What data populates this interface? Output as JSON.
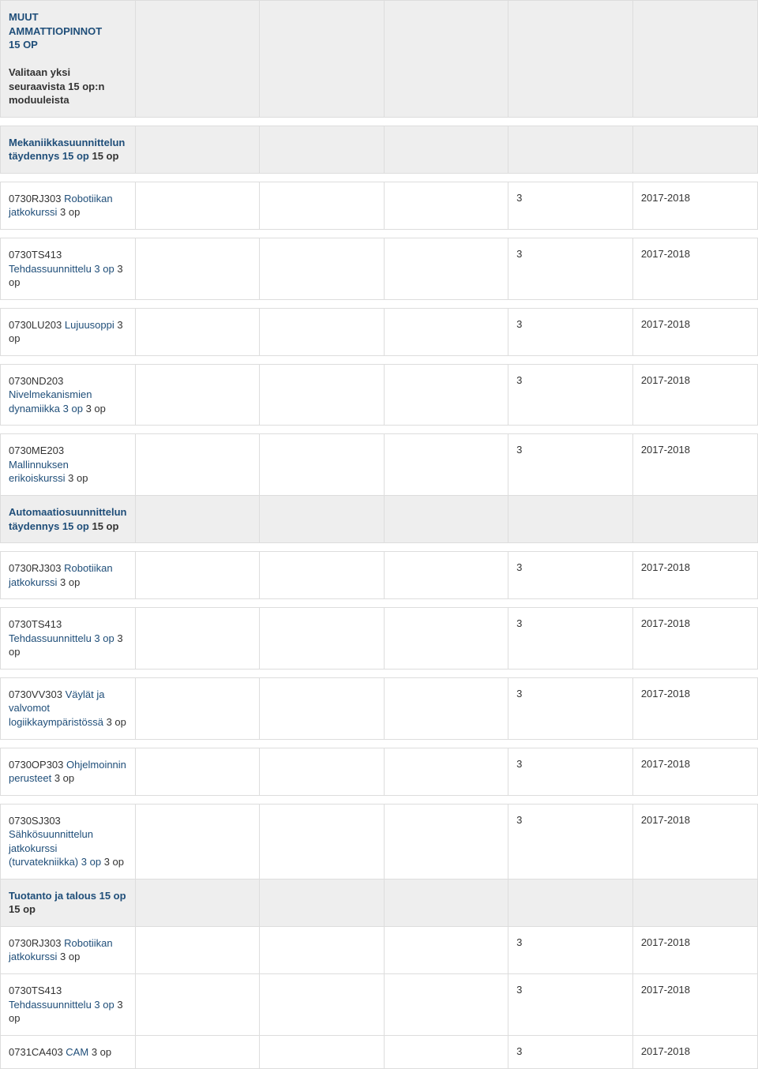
{
  "colors": {
    "header_bg": "#eeeeee",
    "row_bg": "#ffffff",
    "row_alt_bg": "#f9f9f9",
    "border": "#dddddd",
    "link": "#1f4e79",
    "text": "#333333"
  },
  "layout": {
    "columns": 6,
    "col_widths_pct": [
      16.6,
      16.68,
      16.68,
      16.68,
      16.68,
      16.68
    ],
    "font_family": "Arial",
    "font_size_pt": 10
  },
  "credits_col_index": 4,
  "year_col_index": 5,
  "sections": [
    {
      "kind": "header",
      "title": "MUUT AMMATTIOPINNOT",
      "title_suffix": " 15 OP",
      "subtext": "Valitaan yksi seuraavista 15 op:n moduuleista"
    },
    {
      "kind": "header",
      "title": "Mekaniikkasuunnittelun täydennys 15 op",
      "title_after": " 15 op"
    },
    {
      "kind": "course",
      "code": "0730RJ303",
      "name": "Robotiikan jatkokurssi",
      "op": "3 op",
      "credits": "3",
      "year": "2017-2018"
    },
    {
      "kind": "course",
      "code": "0730TS413",
      "name": "Tehdassuunnittelu 3 op",
      "op": "3 op",
      "credits": "3",
      "year": "2017-2018"
    },
    {
      "kind": "course",
      "code": "0730LU203",
      "name": "Lujuusoppi",
      "op": "3 op",
      "credits": "3",
      "year": "2017-2018"
    },
    {
      "kind": "course",
      "code": "0730ND203",
      "name": "Nivelmekanismien dynamiikka 3 op",
      "op": "3 op",
      "credits": "3",
      "year": "2017-2018"
    },
    {
      "kind": "course",
      "code": "0730ME203",
      "name": "Mallinnuksen erikoiskurssi",
      "op": "3 op",
      "credits": "3",
      "year": "2017-2018"
    },
    {
      "kind": "header_attached",
      "title": "Automaatiosuunnittelun täydennys 15 op",
      "title_after": " 15 op"
    },
    {
      "kind": "course",
      "code": "0730RJ303",
      "name": "Robotiikan jatkokurssi",
      "op": "3 op",
      "credits": "3",
      "year": "2017-2018"
    },
    {
      "kind": "course",
      "code": "0730TS413",
      "name": "Tehdassuunnittelu 3 op",
      "op": "3 op",
      "credits": "3",
      "year": "2017-2018"
    },
    {
      "kind": "course",
      "code": "0730VV303",
      "name": "Väylät ja valvomot logiikkaympäristössä",
      "op": "3 op",
      "credits": "3",
      "year": "2017-2018"
    },
    {
      "kind": "course",
      "code": "0730OP303",
      "name": "Ohjelmoinnin perusteet",
      "op": "3 op",
      "credits": "3",
      "year": "2017-2018"
    },
    {
      "kind": "course",
      "code": "0730SJ303",
      "name": "Sähkösuunnittelun jatkokurssi (turvatekniikka) 3 op",
      "op": "3 op",
      "credits": "3",
      "year": "2017-2018"
    },
    {
      "kind": "header_attached",
      "title": "Tuotanto ja talous 15 op",
      "title_after": " 15 op"
    },
    {
      "kind": "course_tight",
      "code": "0730RJ303",
      "name": "Robotiikan jatkokurssi",
      "op": "3 op",
      "credits": "3",
      "year": "2017-2018"
    },
    {
      "kind": "course_tight",
      "code": "0730TS413",
      "name": "Tehdassuunnittelu 3 op",
      "op": "3 op",
      "credits": "3",
      "year": "2017-2018"
    },
    {
      "kind": "course_tight",
      "code": "0731CA403",
      "name": "CAM",
      "op": "3 op",
      "credits": "3",
      "year": "2017-2018"
    }
  ]
}
